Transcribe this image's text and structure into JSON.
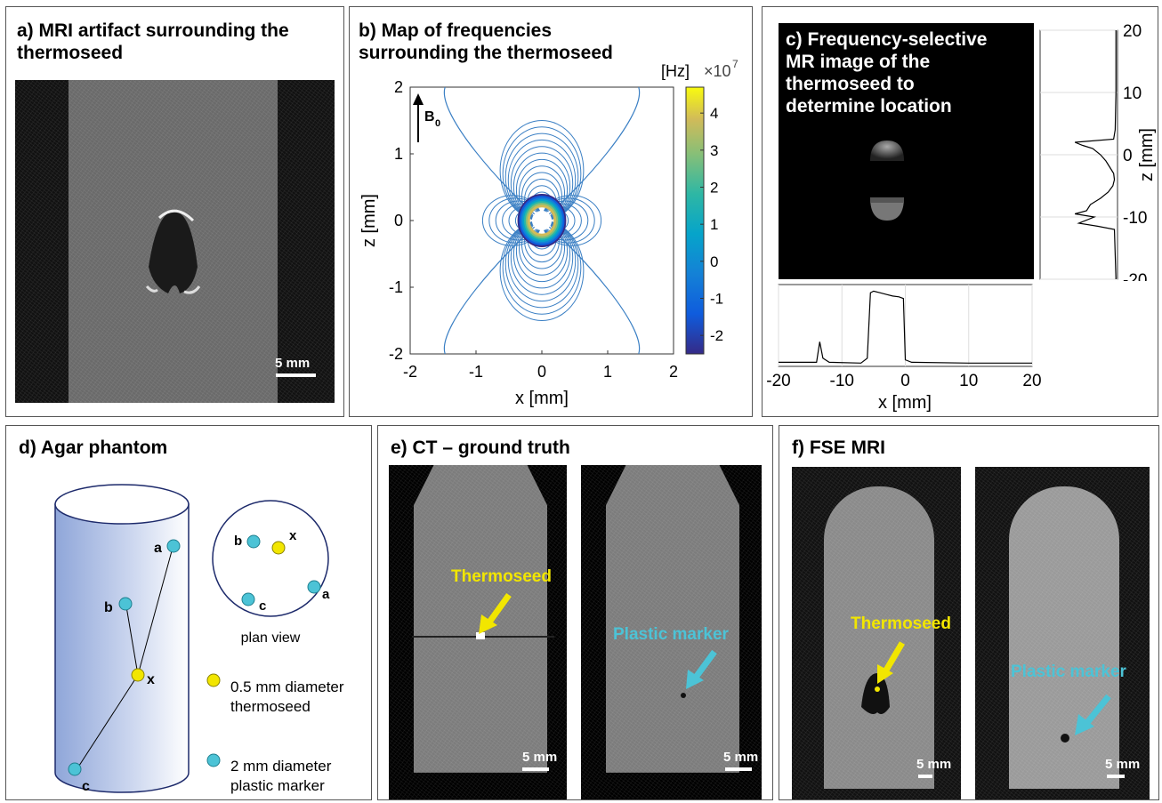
{
  "panels": {
    "a": {
      "title": "a) MRI artifact surrounding the\nthermoseed",
      "scalebar": "5 mm"
    },
    "b": {
      "title": "b) Map of frequencies\nsurrounding the thermoseed",
      "colorbar_unit": "[Hz]",
      "colorbar_exp_base": "×10",
      "colorbar_exp": "7",
      "b0_label": "B",
      "b0_sub": "0"
    },
    "c": {
      "title": "c) Frequency-selective\nMR image of the\nthermoseed to\ndetermine location"
    },
    "d": {
      "title": "d) Agar phantom",
      "points": {
        "a": "a",
        "b": "b",
        "c": "c",
        "x": "x"
      },
      "plan_view": "plan view",
      "legend_seed": "0.5 mm diameter\nthermoseed",
      "legend_marker": "2 mm diameter\nplastic marker"
    },
    "e": {
      "title": "e) CT – ground truth",
      "label_seed": "Thermoseed",
      "label_marker": "Plastic marker",
      "scalebar": "5 mm"
    },
    "f": {
      "title": "f) FSE MRI",
      "label_seed": "Thermoseed",
      "label_marker": "Plastic marker",
      "scalebar": "5 mm"
    }
  },
  "colors": {
    "seed_yellow": "#f2e600",
    "marker_cyan": "#4cc3d6",
    "contour_blue": "#3a7fc4"
  },
  "chart_data": [
    {
      "id": "b",
      "type": "contour",
      "xlabel": "x [mm]",
      "ylabel": "z [mm]",
      "xlim": [
        -2,
        2
      ],
      "ylim": [
        -2,
        2
      ],
      "xticks": [
        -2,
        -1,
        0,
        1,
        2
      ],
      "yticks": [
        -2,
        -1,
        0,
        1,
        2
      ],
      "colorbar_ticks": [
        -2,
        -1,
        0,
        1,
        2,
        3,
        4
      ],
      "colorbar_range": [
        -2.5,
        4.7
      ]
    },
    {
      "id": "c-right",
      "type": "line",
      "ylabel": "z [mm]",
      "ylim": [
        -20,
        20
      ],
      "yticks": [
        -20,
        -10,
        0,
        10,
        20
      ],
      "profile": [
        [
          -20,
          0.02
        ],
        [
          -16,
          0.03
        ],
        [
          -12,
          0.04
        ],
        [
          -11.5,
          0.25
        ],
        [
          -11,
          0.5
        ],
        [
          -10,
          0.3
        ],
        [
          -9.5,
          0.55
        ],
        [
          -9,
          0.4
        ],
        [
          -8,
          0.35
        ],
        [
          -7,
          0.22
        ],
        [
          -6,
          0.12
        ],
        [
          -5,
          0.06
        ],
        [
          -4,
          0.04
        ],
        [
          -3,
          0.05
        ],
        [
          -2,
          0.1
        ],
        [
          -1,
          0.15
        ],
        [
          0,
          0.22
        ],
        [
          1,
          0.32
        ],
        [
          1.5,
          0.45
        ],
        [
          2,
          0.55
        ],
        [
          2.5,
          0.05
        ],
        [
          4,
          0.03
        ],
        [
          10,
          0.02
        ],
        [
          20,
          0.02
        ]
      ]
    },
    {
      "id": "c-bottom",
      "type": "line",
      "xlabel": "x [mm]",
      "xlim": [
        -20,
        20
      ],
      "xticks": [
        -20,
        -10,
        0,
        10,
        20
      ],
      "profile": [
        [
          -20,
          0.05
        ],
        [
          -14,
          0.05
        ],
        [
          -13.5,
          0.3
        ],
        [
          -13,
          0.1
        ],
        [
          -12,
          0.05
        ],
        [
          -7,
          0.04
        ],
        [
          -6,
          0.1
        ],
        [
          -5.5,
          0.9
        ],
        [
          -5,
          0.92
        ],
        [
          -4,
          0.9
        ],
        [
          -3,
          0.88
        ],
        [
          -2,
          0.86
        ],
        [
          -1,
          0.85
        ],
        [
          -0.3,
          0.83
        ],
        [
          0,
          0.08
        ],
        [
          1,
          0.05
        ],
        [
          10,
          0.04
        ],
        [
          20,
          0.04
        ]
      ]
    }
  ]
}
